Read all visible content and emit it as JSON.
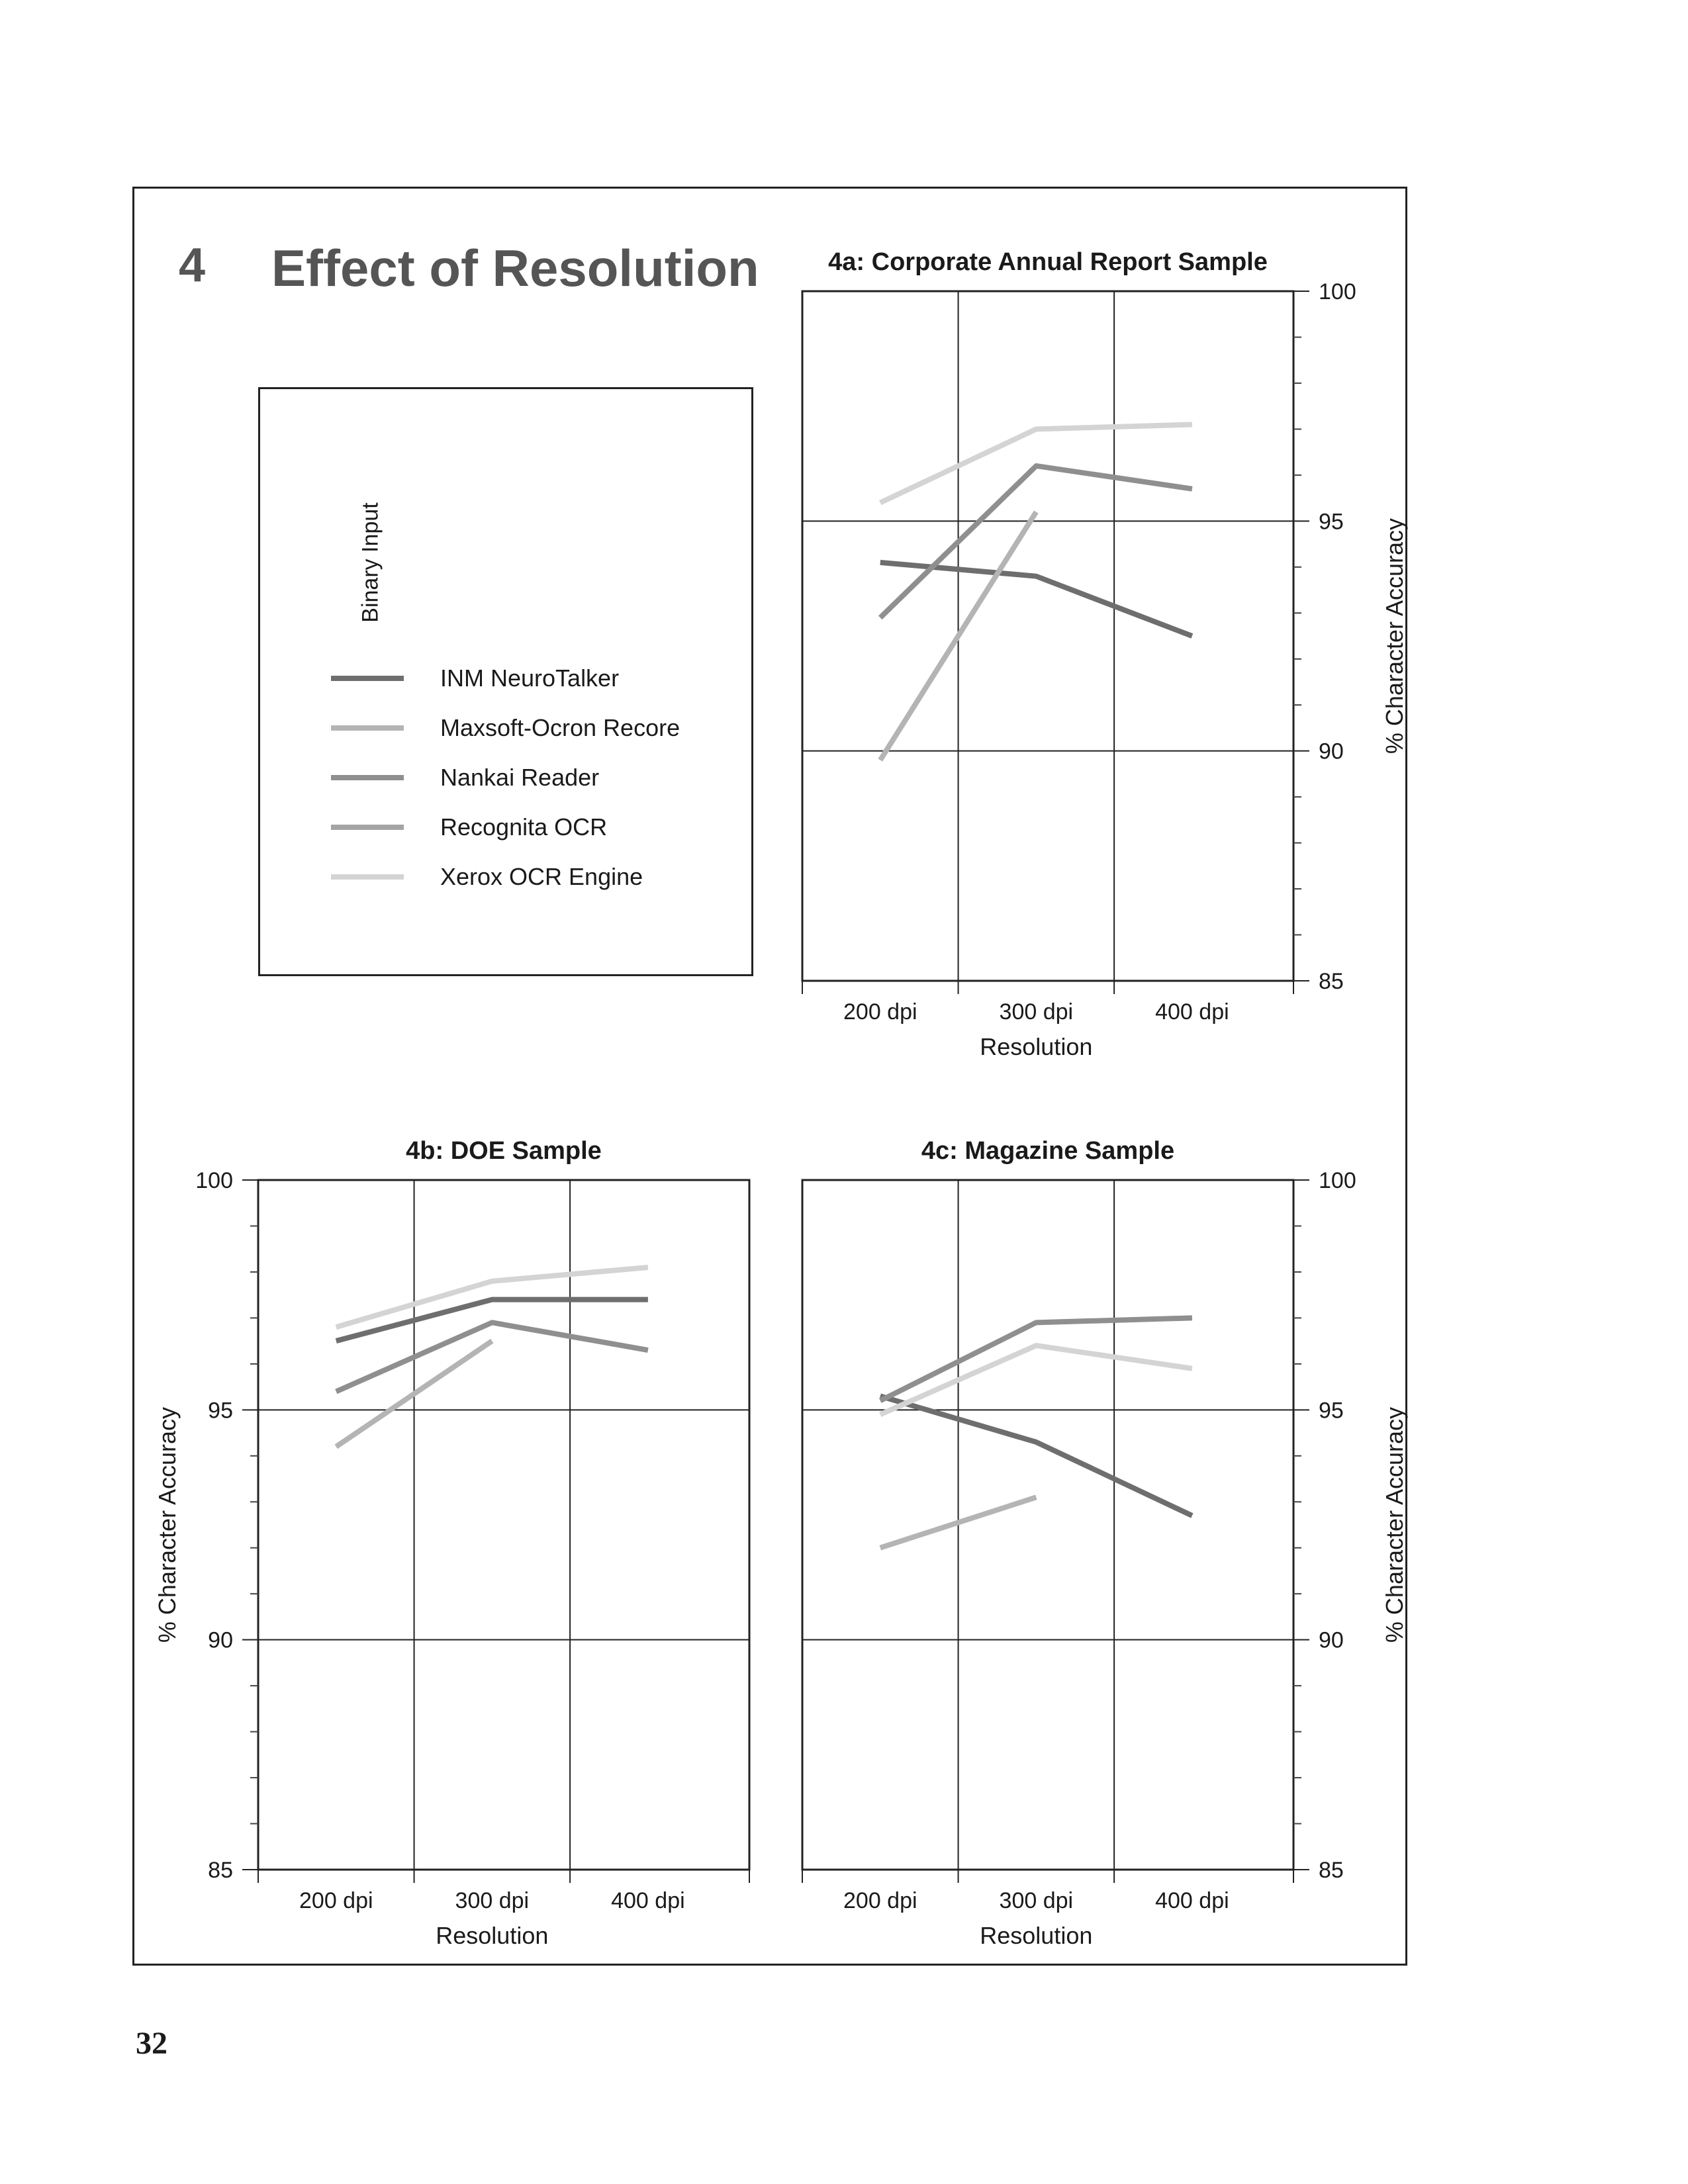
{
  "section": {
    "number": "4",
    "title": "Effect of Resolution"
  },
  "page_number": "32",
  "legend": {
    "caption": "Binary Input",
    "items": [
      {
        "label": "INM NeuroTalker",
        "color": "#6e6e6e"
      },
      {
        "label": "Maxsoft-Ocron Recore",
        "color": "#b4b4b4"
      },
      {
        "label": "Nankai Reader",
        "color": "#8f8f8f"
      },
      {
        "label": "Recognita OCR",
        "color": "#a4a4a4"
      },
      {
        "label": "Xerox OCR Engine",
        "color": "#d4d4d4"
      }
    ]
  },
  "chart_data": [
    {
      "type": "line",
      "title": "4a: Corporate Annual Report Sample",
      "xlabel": "Resolution",
      "ylabel": "% Character Accuracy",
      "categories": [
        "200 dpi",
        "300 dpi",
        "400 dpi"
      ],
      "ylim": [
        85,
        100
      ],
      "yticks": [
        85,
        90,
        95,
        100
      ],
      "y_axis_side": "right",
      "grid": true,
      "series": [
        {
          "name": "INM NeuroTalker",
          "values": [
            94.1,
            93.8,
            92.5
          ]
        },
        {
          "name": "Maxsoft-Ocron Recore",
          "values": [
            89.8,
            95.2,
            null
          ]
        },
        {
          "name": "Nankai Reader",
          "values": [
            92.9,
            96.2,
            95.7
          ]
        },
        {
          "name": "Recognita OCR",
          "values": [
            null,
            null,
            null
          ]
        },
        {
          "name": "Xerox OCR Engine",
          "values": [
            95.4,
            97.0,
            97.1
          ]
        }
      ]
    },
    {
      "type": "line",
      "title": "4b: DOE Sample",
      "xlabel": "Resolution",
      "ylabel": "% Character Accuracy",
      "categories": [
        "200 dpi",
        "300 dpi",
        "400 dpi"
      ],
      "ylim": [
        85,
        100
      ],
      "yticks": [
        85,
        90,
        95,
        100
      ],
      "y_axis_side": "left",
      "grid": true,
      "series": [
        {
          "name": "INM NeuroTalker",
          "values": [
            96.5,
            97.4,
            97.4
          ]
        },
        {
          "name": "Maxsoft-Ocron Recore",
          "values": [
            94.2,
            96.5,
            null
          ]
        },
        {
          "name": "Nankai Reader",
          "values": [
            95.4,
            96.9,
            96.3
          ]
        },
        {
          "name": "Recognita OCR",
          "values": [
            null,
            null,
            null
          ]
        },
        {
          "name": "Xerox OCR Engine",
          "values": [
            96.8,
            97.8,
            98.1
          ]
        }
      ]
    },
    {
      "type": "line",
      "title": "4c: Magazine Sample",
      "xlabel": "Resolution",
      "ylabel": "% Character Accuracy",
      "categories": [
        "200 dpi",
        "300 dpi",
        "400 dpi"
      ],
      "ylim": [
        85,
        100
      ],
      "yticks": [
        85,
        90,
        95,
        100
      ],
      "y_axis_side": "right",
      "grid": true,
      "series": [
        {
          "name": "INM NeuroTalker",
          "values": [
            95.3,
            94.3,
            92.7
          ]
        },
        {
          "name": "Maxsoft-Ocron Recore",
          "values": [
            92.0,
            93.1,
            null
          ]
        },
        {
          "name": "Nankai Reader",
          "values": [
            95.2,
            96.9,
            97.0
          ]
        },
        {
          "name": "Recognita OCR",
          "values": [
            null,
            null,
            null
          ]
        },
        {
          "name": "Xerox OCR Engine",
          "values": [
            94.9,
            96.4,
            95.9
          ]
        }
      ]
    }
  ]
}
